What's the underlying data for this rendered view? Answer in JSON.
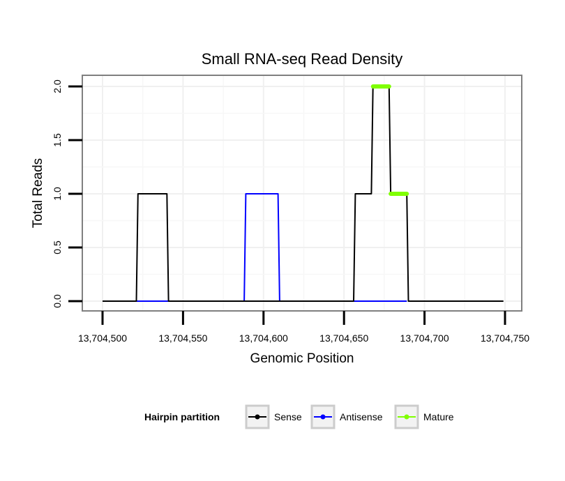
{
  "chart_data": {
    "type": "line",
    "title": "Small RNA-seq Read Density",
    "xlabel": "Genomic Position",
    "ylabel": "Total Reads",
    "xlim": [
      13704500,
      13704750
    ],
    "ylim": [
      0,
      2
    ],
    "x_ticks": [
      13704500,
      13704550,
      13704600,
      13704650,
      13704700,
      13704750
    ],
    "x_tick_labels": [
      "13,704,500",
      "13,704,550",
      "13,704,600",
      "13,704,650",
      "13,704,700",
      "13,704,750"
    ],
    "y_ticks": [
      0,
      0.5,
      1,
      1.5,
      2
    ],
    "y_tick_labels": [
      "0.0",
      "0.5",
      "1.0",
      "1.5",
      "2.0"
    ],
    "grid": true,
    "legend": {
      "title": "Hairpin partition",
      "position": "bottom",
      "entries": [
        {
          "name": "Sense",
          "color": "#000000"
        },
        {
          "name": "Antisense",
          "color": "#0000ff"
        },
        {
          "name": "Mature",
          "color": "#7fff00"
        }
      ]
    },
    "series": [
      {
        "name": "Sense",
        "color": "#000000",
        "x": [
          13704500,
          13704521,
          13704522,
          13704540,
          13704541,
          13704656,
          13704657,
          13704667,
          13704668,
          13704678,
          13704679,
          13704689,
          13704690,
          13704749
        ],
        "y": [
          0,
          0,
          1,
          1,
          0,
          0,
          1,
          1,
          2,
          2,
          1,
          1,
          0,
          0
        ]
      },
      {
        "name": "Antisense",
        "color": "#0000ff",
        "x": [
          13704521,
          13704540,
          13704541,
          13704588,
          13704589,
          13704609,
          13704610,
          13704656,
          13704657,
          13704689
        ],
        "y": [
          0,
          0,
          0,
          0,
          1,
          1,
          0,
          0,
          0,
          0
        ]
      },
      {
        "name": "Mature",
        "color": "#7fff00",
        "segments": [
          {
            "x": [
              13704668,
              13704678
            ],
            "y": 2
          },
          {
            "x": [
              13704679,
              13704689
            ],
            "y": 1
          }
        ]
      }
    ]
  }
}
